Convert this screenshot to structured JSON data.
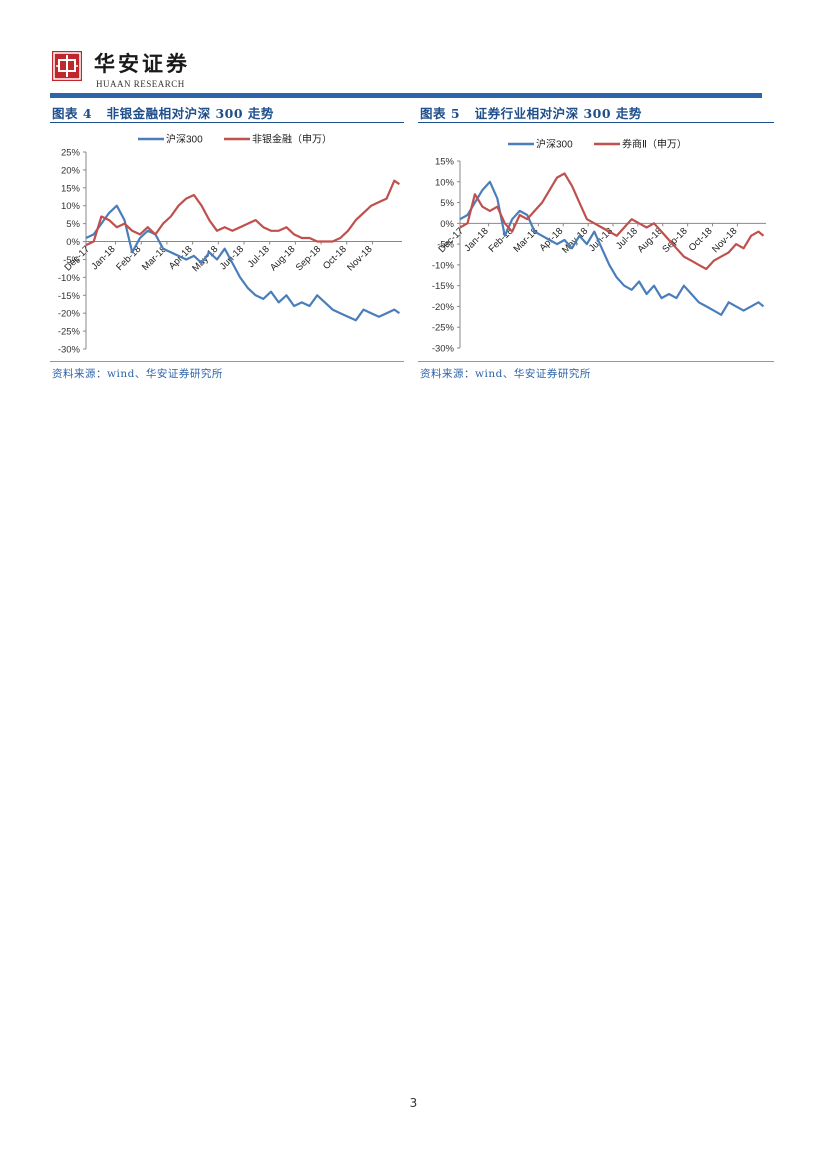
{
  "header": {
    "company_name": "华安证券",
    "company_name_en": "HUAAN RESEARCH",
    "logo_glyph": "中"
  },
  "figures": [
    {
      "label": "图表 4",
      "title": "非银金融相对沪深 300 走势",
      "source": "资料来源：wind、华安证券研究所"
    },
    {
      "label": "图表 5",
      "title": "证券行业相对沪深 300 走势",
      "source": "资料来源：wind、华安证券研究所"
    }
  ],
  "chart_data": [
    {
      "type": "line",
      "title": "",
      "xlabel": "",
      "ylabel": "",
      "ylim": [
        -30,
        25
      ],
      "yticks": [
        25,
        20,
        15,
        10,
        5,
        0,
        -5,
        -10,
        -15,
        -20,
        -25,
        -30
      ],
      "ytick_labels": [
        "25%",
        "20%",
        "15%",
        "10%",
        "5%",
        "0%",
        "-5%",
        "-10%",
        "-15%",
        "-20%",
        "-25%",
        "-30%"
      ],
      "xticks": [
        "Dec-17",
        "Jan-18",
        "Feb-18",
        "Mar-18",
        "Apr-18",
        "May-18",
        "Jun-18",
        "Jul-18",
        "Aug-18",
        "Sep-18",
        "Oct-18",
        "Nov-18"
      ],
      "legend": "top",
      "grid": false,
      "series": [
        {
          "name": "沪深300",
          "color": "#4a7ebb",
          "x": [
            0,
            0.3,
            0.6,
            0.9,
            1.2,
            1.5,
            1.8,
            2.1,
            2.4,
            2.7,
            3.0,
            3.3,
            3.6,
            3.9,
            4.2,
            4.5,
            4.8,
            5.1,
            5.4,
            5.7,
            6.0,
            6.3,
            6.6,
            6.9,
            7.2,
            7.5,
            7.8,
            8.1,
            8.4,
            8.7,
            9.0,
            9.3,
            9.6,
            9.9,
            10.2,
            10.5,
            10.8,
            11.1,
            11.4,
            11.7,
            12.0,
            12.2
          ],
          "y": [
            1,
            2,
            5,
            8,
            10,
            6,
            -3,
            1,
            3,
            2,
            -2,
            -3,
            -4,
            -5,
            -4,
            -6,
            -3,
            -5,
            -2,
            -6,
            -10,
            -13,
            -15,
            -16,
            -14,
            -17,
            -15,
            -18,
            -17,
            -18,
            -15,
            -17,
            -19,
            -20,
            -21,
            -22,
            -19,
            -20,
            -21,
            -20,
            -19,
            -20
          ]
        },
        {
          "name": "非银金融（申万）",
          "color": "#c0504d",
          "x": [
            0,
            0.3,
            0.6,
            0.9,
            1.2,
            1.5,
            1.8,
            2.1,
            2.4,
            2.7,
            3.0,
            3.3,
            3.6,
            3.9,
            4.2,
            4.5,
            4.8,
            5.1,
            5.4,
            5.7,
            6.0,
            6.3,
            6.6,
            6.9,
            7.2,
            7.5,
            7.8,
            8.1,
            8.4,
            8.7,
            9.0,
            9.3,
            9.6,
            9.9,
            10.2,
            10.5,
            10.8,
            11.1,
            11.4,
            11.7,
            12.0,
            12.2
          ],
          "y": [
            -1,
            0,
            7,
            6,
            4,
            5,
            3,
            2,
            4,
            2,
            5,
            7,
            10,
            12,
            13,
            10,
            6,
            3,
            4,
            3,
            4,
            5,
            6,
            4,
            3,
            3,
            4,
            2,
            1,
            1,
            0,
            0,
            0,
            1,
            3,
            6,
            8,
            10,
            11,
            12,
            17,
            16
          ]
        }
      ]
    },
    {
      "type": "line",
      "title": "",
      "xlabel": "",
      "ylabel": "",
      "ylim": [
        -30,
        15
      ],
      "yticks": [
        15,
        10,
        5,
        0,
        -5,
        -10,
        -15,
        -20,
        -25,
        -30
      ],
      "ytick_labels": [
        "15%",
        "10%",
        "5%",
        "0%",
        "-5%",
        "-10%",
        "-15%",
        "-20%",
        "-25%",
        "-30%"
      ],
      "xticks": [
        "Dec-17",
        "Jan-18",
        "Feb-18",
        "Mar-18",
        "Apr-18",
        "May-18",
        "Jun-18",
        "Jul-18",
        "Aug-18",
        "Sep-18",
        "Oct-18",
        "Nov-18"
      ],
      "legend": "top",
      "grid": false,
      "series": [
        {
          "name": "沪深300",
          "color": "#4a7ebb",
          "x": [
            0,
            0.3,
            0.6,
            0.9,
            1.2,
            1.5,
            1.8,
            2.1,
            2.4,
            2.7,
            3.0,
            3.3,
            3.6,
            3.9,
            4.2,
            4.5,
            4.8,
            5.1,
            5.4,
            5.7,
            6.0,
            6.3,
            6.6,
            6.9,
            7.2,
            7.5,
            7.8,
            8.1,
            8.4,
            8.7,
            9.0,
            9.3,
            9.6,
            9.9,
            10.2,
            10.5,
            10.8,
            11.1,
            11.4,
            11.7,
            12.0,
            12.2
          ],
          "y": [
            1,
            2,
            5,
            8,
            10,
            6,
            -3,
            1,
            3,
            2,
            -2,
            -3,
            -4,
            -5,
            -4,
            -6,
            -3,
            -5,
            -2,
            -6,
            -10,
            -13,
            -15,
            -16,
            -14,
            -17,
            -15,
            -18,
            -17,
            -18,
            -15,
            -17,
            -19,
            -20,
            -21,
            -22,
            -19,
            -20,
            -21,
            -20,
            -19,
            -20
          ]
        },
        {
          "name": "券商Ⅱ（申万）",
          "color": "#c0504d",
          "x": [
            0,
            0.3,
            0.6,
            0.9,
            1.2,
            1.5,
            1.8,
            2.1,
            2.4,
            2.7,
            3.0,
            3.3,
            3.6,
            3.9,
            4.2,
            4.5,
            4.8,
            5.1,
            5.4,
            5.7,
            6.0,
            6.3,
            6.6,
            6.9,
            7.2,
            7.5,
            7.8,
            8.1,
            8.4,
            8.7,
            9.0,
            9.3,
            9.6,
            9.9,
            10.2,
            10.5,
            10.8,
            11.1,
            11.4,
            11.7,
            12.0,
            12.2
          ],
          "y": [
            -1,
            0,
            7,
            4,
            3,
            4,
            0,
            -2,
            2,
            1,
            3,
            5,
            8,
            11,
            12,
            9,
            5,
            1,
            0,
            -1,
            -2,
            -3,
            -1,
            1,
            0,
            -1,
            0,
            -2,
            -4,
            -6,
            -8,
            -9,
            -10,
            -11,
            -9,
            -8,
            -7,
            -5,
            -6,
            -3,
            -2,
            -3
          ]
        }
      ]
    }
  ],
  "page": {
    "number": "3"
  }
}
